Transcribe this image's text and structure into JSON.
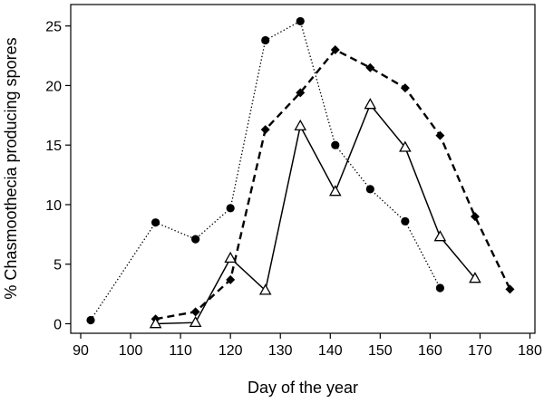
{
  "chart_data": {
    "type": "line",
    "title": "",
    "xlabel": "Day of the year",
    "ylabel": "% Chasmoothecia producing spores",
    "xlim": [
      88,
      181
    ],
    "ylim": [
      -0.8,
      26.8
    ],
    "xticks": [
      90,
      100,
      110,
      120,
      130,
      140,
      150,
      160,
      170,
      180
    ],
    "yticks": [
      0,
      5,
      10,
      15,
      20,
      25
    ],
    "grid": false,
    "series": [
      {
        "marker": "circle",
        "line_style": "dotted",
        "color": "#000000",
        "points": [
          [
            92,
            0.3
          ],
          [
            105,
            8.5
          ],
          [
            113,
            7.1
          ],
          [
            120,
            9.7
          ],
          [
            127,
            23.8
          ],
          [
            134,
            25.4
          ],
          [
            141,
            15.0
          ],
          [
            148,
            11.3
          ],
          [
            155,
            8.6
          ],
          [
            162,
            3.0
          ]
        ]
      },
      {
        "marker": "diamond",
        "line_style": "dashed",
        "color": "#000000",
        "points": [
          [
            105,
            0.4
          ],
          [
            113,
            1.0
          ],
          [
            120,
            3.7
          ],
          [
            127,
            16.3
          ],
          [
            134,
            19.4
          ],
          [
            141,
            23.0
          ],
          [
            148,
            21.5
          ],
          [
            155,
            19.8
          ],
          [
            162,
            15.8
          ],
          [
            169,
            9.0
          ],
          [
            176,
            2.9
          ]
        ]
      },
      {
        "marker": "triangle-open",
        "line_style": "solid",
        "color": "#000000",
        "points": [
          [
            105,
            0.0
          ],
          [
            113,
            0.1
          ],
          [
            120,
            5.5
          ],
          [
            127,
            2.8
          ],
          [
            134,
            16.6
          ],
          [
            141,
            11.1
          ],
          [
            148,
            18.4
          ],
          [
            155,
            14.8
          ],
          [
            162,
            7.3
          ],
          [
            169,
            3.8
          ]
        ]
      }
    ]
  }
}
